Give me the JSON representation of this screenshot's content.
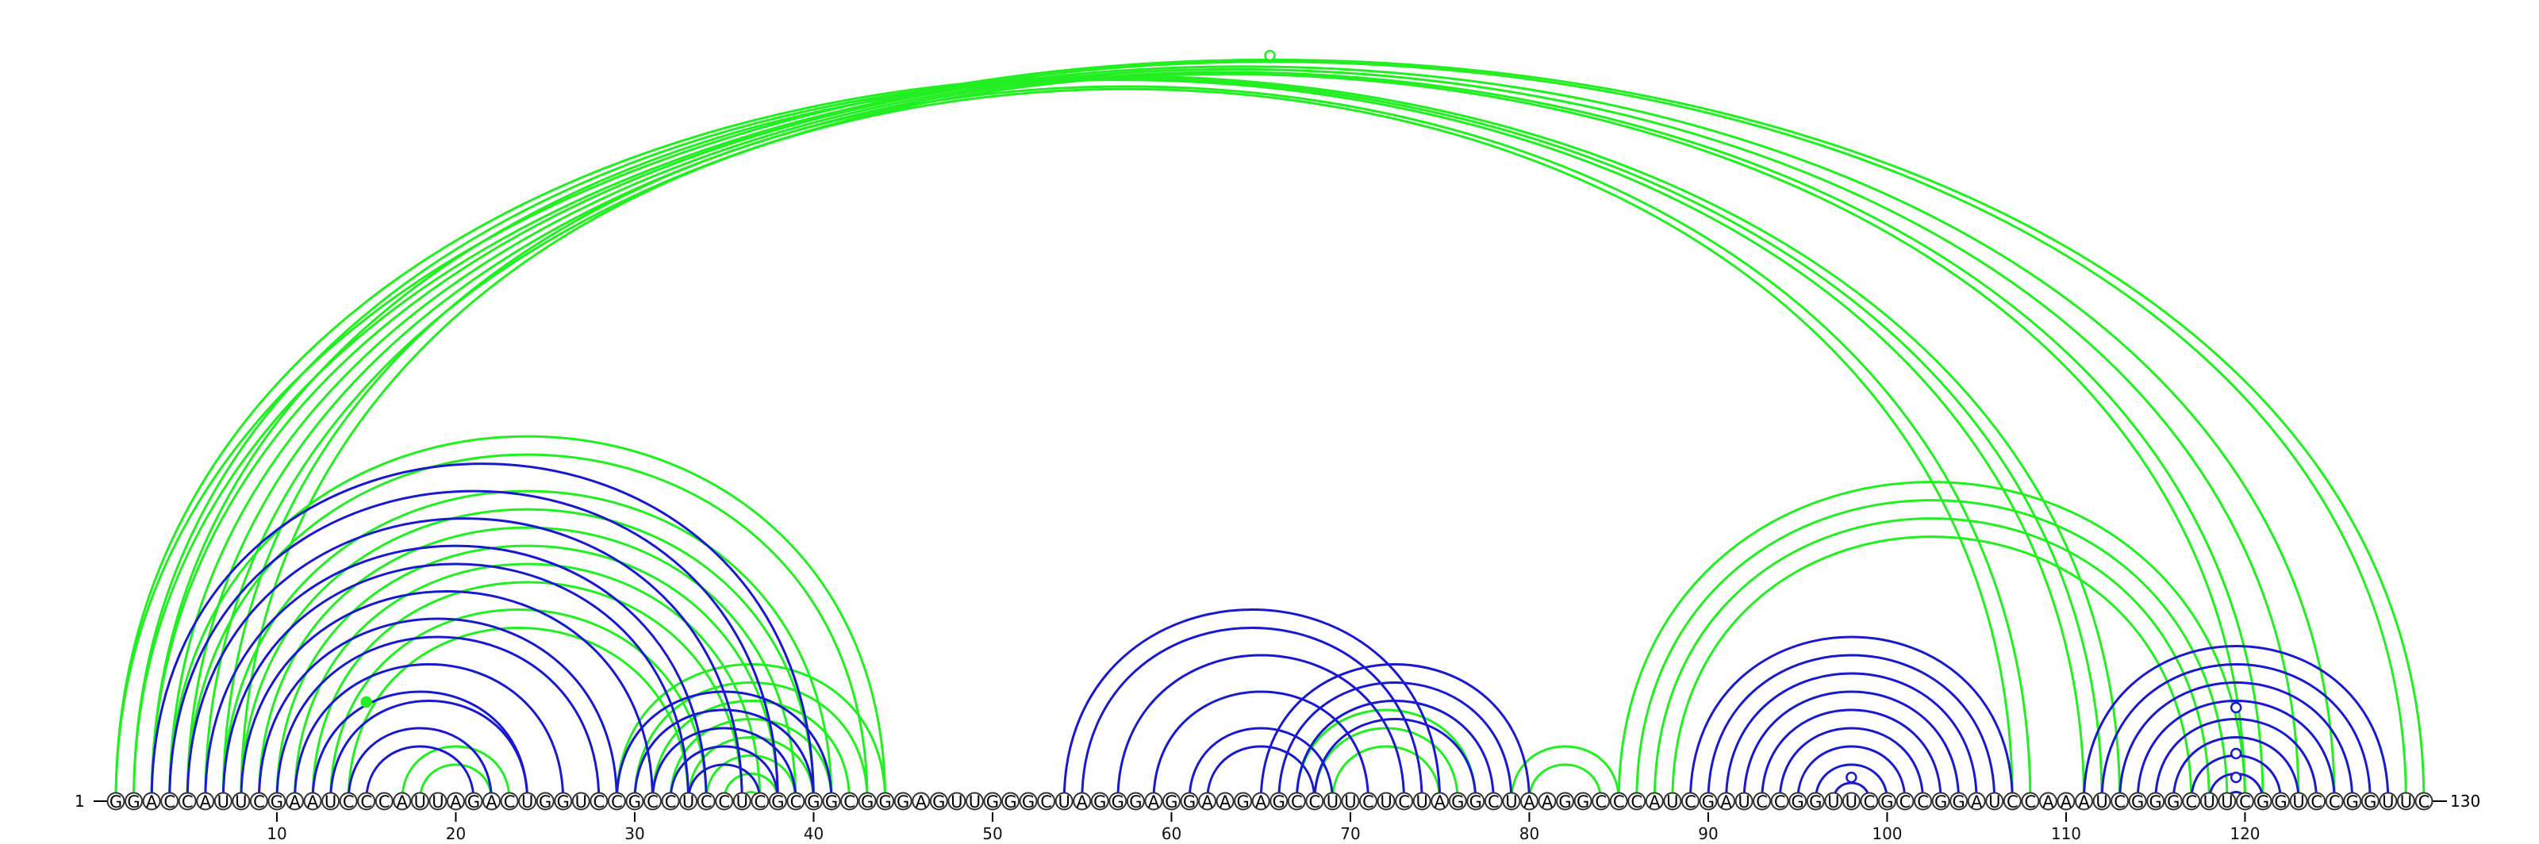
{
  "sequence": "GGACCAUUCGAAUCCCAUUAGACUGGUCCGCCUCCUCGCGGCGGGAGUUGGGCUAGGGAGGAAGAGCCUUCUCUAGGCUAAGGCCCAUCGAUCCGGUUCGCCGGAUCCAAAUCGGGCUUCGGUCCGGUUC",
  "start_label": "1",
  "end_label": "130",
  "ticks": [
    "10",
    "20",
    "30",
    "40",
    "50",
    "60",
    "70",
    "80",
    "90",
    "100",
    "110",
    "120"
  ],
  "colors": {
    "green": "#22ee22",
    "blue": "#1a1acc"
  },
  "arcs": {
    "green": [
      [
        1,
        130
      ],
      [
        2,
        129
      ],
      [
        3,
        125
      ],
      [
        4,
        123
      ],
      [
        5,
        121
      ],
      [
        6,
        120
      ],
      [
        1,
        113
      ],
      [
        2,
        112
      ],
      [
        3,
        111
      ],
      [
        7,
        108
      ],
      [
        8,
        107
      ],
      [
        4,
        44
      ],
      [
        5,
        43
      ],
      [
        7,
        41
      ],
      [
        8,
        40
      ],
      [
        9,
        39
      ],
      [
        10,
        38
      ],
      [
        11,
        37
      ],
      [
        12,
        36
      ],
      [
        14,
        33
      ],
      [
        13,
        34
      ],
      [
        17,
        23
      ],
      [
        18,
        22
      ],
      [
        29,
        44
      ],
      [
        30,
        43
      ],
      [
        31,
        42
      ],
      [
        32,
        41
      ],
      [
        33,
        40
      ],
      [
        34,
        39
      ],
      [
        35,
        38
      ],
      [
        36,
        37
      ],
      [
        67,
        77
      ],
      [
        68,
        76
      ],
      [
        69,
        75
      ],
      [
        79,
        85
      ],
      [
        80,
        84
      ],
      [
        85,
        120
      ],
      [
        86,
        119
      ],
      [
        87,
        118
      ],
      [
        88,
        117
      ],
      [
        119,
        120
      ]
    ],
    "blue": [
      [
        3,
        40
      ],
      [
        4,
        38
      ],
      [
        5,
        36
      ],
      [
        6,
        34
      ],
      [
        7,
        33
      ],
      [
        8,
        31
      ],
      [
        9,
        29
      ],
      [
        10,
        28
      ],
      [
        11,
        26
      ],
      [
        12,
        24
      ],
      [
        13,
        24
      ],
      [
        14,
        22
      ],
      [
        15,
        21
      ],
      [
        29,
        41
      ],
      [
        30,
        40
      ],
      [
        31,
        39
      ],
      [
        32,
        38
      ],
      [
        33,
        37
      ],
      [
        54,
        75
      ],
      [
        55,
        74
      ],
      [
        57,
        73
      ],
      [
        59,
        71
      ],
      [
        61,
        69
      ],
      [
        62,
        68
      ],
      [
        65,
        80
      ],
      [
        66,
        79
      ],
      [
        67,
        78
      ],
      [
        68,
        77
      ],
      [
        89,
        107
      ],
      [
        90,
        106
      ],
      [
        91,
        105
      ],
      [
        92,
        104
      ],
      [
        93,
        103
      ],
      [
        94,
        102
      ],
      [
        95,
        101
      ],
      [
        96,
        100
      ],
      [
        97,
        99
      ],
      [
        111,
        128
      ],
      [
        112,
        127
      ],
      [
        113,
        126
      ],
      [
        114,
        125
      ],
      [
        115,
        124
      ],
      [
        116,
        123
      ],
      [
        117,
        122
      ],
      [
        118,
        121
      ],
      [
        119,
        120
      ]
    ]
  }
}
